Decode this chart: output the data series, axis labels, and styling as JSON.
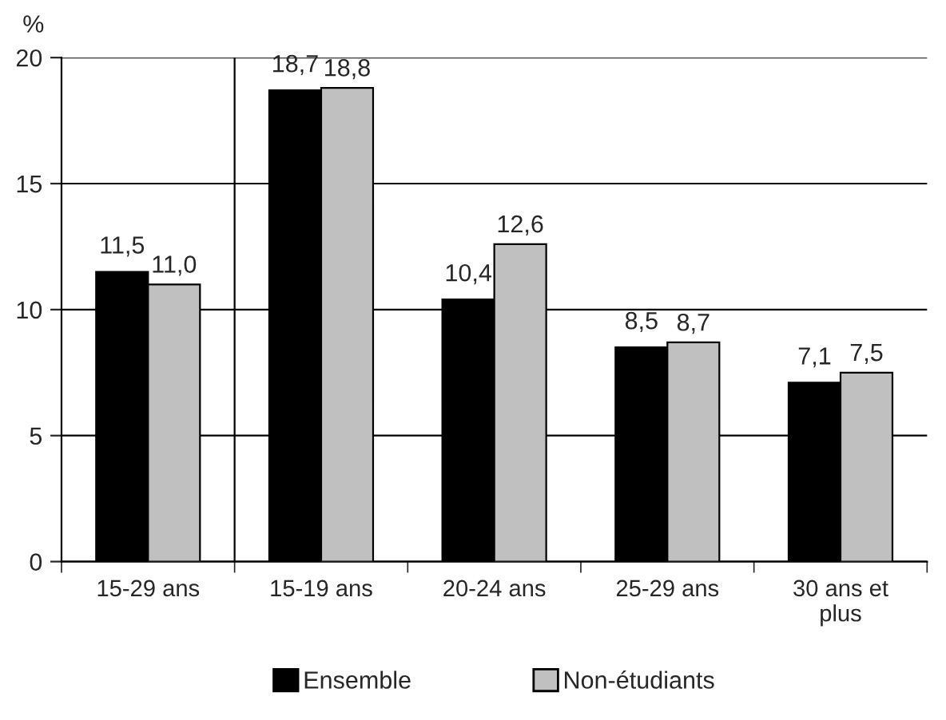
{
  "chart_data": {
    "type": "bar",
    "ylabel": "%",
    "categories": [
      "15-29 ans",
      "15-19 ans",
      "20-24 ans",
      "25-29 ans",
      "30 ans et\nplus"
    ],
    "series": [
      {
        "name": "Ensemble",
        "color": "#000000",
        "values": [
          11.5,
          18.7,
          10.4,
          8.5,
          7.1
        ],
        "value_labels": [
          "11,5",
          "18,7",
          "10,4",
          "8,5",
          "7,1"
        ]
      },
      {
        "name": "Non-étudiants",
        "color": "#c0c0c0",
        "values": [
          11.0,
          18.8,
          12.6,
          8.7,
          7.5
        ],
        "value_labels": [
          "11,0",
          "18,8",
          "12,6",
          "8,7",
          "7,5"
        ]
      }
    ],
    "ylim": [
      0,
      20
    ],
    "yticks": [
      0,
      5,
      10,
      15,
      20
    ],
    "grid": "y",
    "legend": "bottom"
  }
}
